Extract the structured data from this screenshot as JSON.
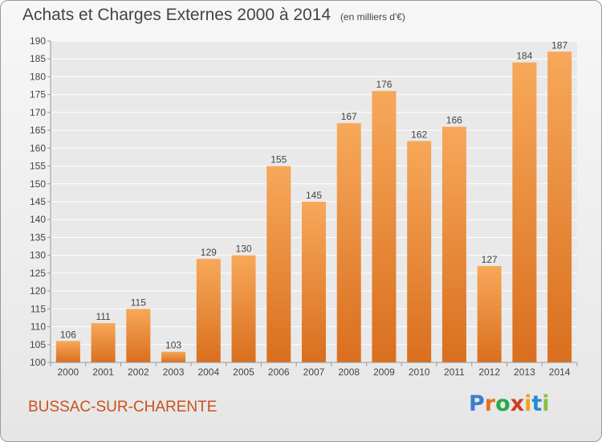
{
  "header": {
    "title": "Achats et Charges Externes 2000 à 2014",
    "unit": "(en milliers d'€)"
  },
  "footer": {
    "commune": "BUSSAC-SUR-CHARENTE",
    "logo_text": "Proxiti",
    "logo_colors": [
      "#3a7fd0",
      "#e87020",
      "#2aa84a",
      "#d23a2a",
      "#f0a020",
      "#2a8ad0",
      "#8ac040"
    ]
  },
  "colors": {
    "bar_light": "#f7a85a",
    "bar_dark": "#d96f1e",
    "axis": "#999999",
    "grid": "#ffffff",
    "text": "#444444",
    "commune": "#c8521e"
  },
  "chart_data": {
    "type": "bar",
    "categories": [
      "2000",
      "2001",
      "2002",
      "2003",
      "2004",
      "2005",
      "2006",
      "2007",
      "2008",
      "2009",
      "2010",
      "2011",
      "2012",
      "2013",
      "2014"
    ],
    "values": [
      106,
      111,
      115,
      103,
      129,
      130,
      155,
      145,
      167,
      176,
      162,
      166,
      127,
      184,
      187
    ],
    "ylim": [
      100,
      190
    ],
    "yticks": [
      100,
      105,
      110,
      115,
      120,
      125,
      130,
      135,
      140,
      145,
      150,
      155,
      160,
      165,
      170,
      175,
      180,
      185,
      190
    ],
    "grid": true
  }
}
